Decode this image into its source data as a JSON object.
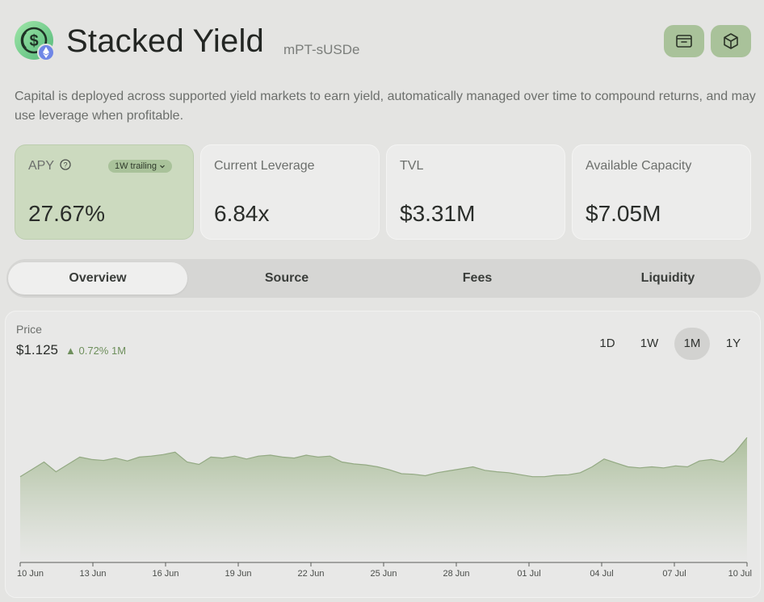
{
  "header": {
    "title": "Stacked Yield",
    "subtitle": "mPT-sUSDe",
    "logo_icon": "usd-coin-icon",
    "badge_icon": "ethereum-icon",
    "buttons": [
      {
        "icon": "wallet-icon"
      },
      {
        "icon": "cube-icon"
      }
    ],
    "accent_color": "#a9c29a"
  },
  "description": "Capital is deployed across supported yield markets to earn yield, automatically managed over time to compound returns, and may use leverage when profitable.",
  "stats": {
    "apy": {
      "label": "APY",
      "value": "27.67%",
      "period": "1W trailing",
      "help_icon": "question-circle-icon"
    },
    "leverage": {
      "label": "Current Leverage",
      "value": "6.84x"
    },
    "tvl": {
      "label": "TVL",
      "value": "$3.31M"
    },
    "capacity": {
      "label": "Available Capacity",
      "value": "$7.05M"
    }
  },
  "tabs": [
    {
      "label": "Overview",
      "active": true
    },
    {
      "label": "Source",
      "active": false
    },
    {
      "label": "Fees",
      "active": false
    },
    {
      "label": "Liquidity",
      "active": false
    }
  ],
  "price_panel": {
    "label": "Price",
    "value": "$1.125",
    "change": "0.72% 1M",
    "change_color": "#6e8f5c",
    "ranges": [
      {
        "label": "1D",
        "active": false
      },
      {
        "label": "1W",
        "active": false
      },
      {
        "label": "1M",
        "active": true
      },
      {
        "label": "1Y",
        "active": false
      }
    ]
  },
  "chart_data": {
    "type": "area",
    "title": "",
    "xlabel": "",
    "ylabel": "",
    "x_ticks": [
      "10 Jun",
      "13 Jun",
      "16 Jun",
      "19 Jun",
      "22 Jun",
      "25 Jun",
      "28 Jun",
      "01 Jul",
      "04 Jul",
      "07 Jul",
      "10 Jul"
    ],
    "y_axis_visible": false,
    "grid": false,
    "series": [
      {
        "color": "#a9bd98",
        "x": [
          "10 Jun",
          "10 Jun",
          "11 Jun",
          "11 Jun",
          "12 Jun",
          "12 Jun",
          "13 Jun",
          "13 Jun",
          "14 Jun",
          "14 Jun",
          "15 Jun",
          "15 Jun",
          "16 Jun",
          "16 Jun",
          "17 Jun",
          "17 Jun",
          "18 Jun",
          "18 Jun",
          "19 Jun",
          "19 Jun",
          "20 Jun",
          "20 Jun",
          "21 Jun",
          "21 Jun",
          "22 Jun",
          "22 Jun",
          "23 Jun",
          "23 Jun",
          "24 Jun",
          "24 Jun",
          "25 Jun",
          "25 Jun",
          "26 Jun",
          "26 Jun",
          "27 Jun",
          "27 Jun",
          "28 Jun",
          "28 Jun",
          "29 Jun",
          "29 Jun",
          "30 Jun",
          "30 Jun",
          "01 Jul",
          "01 Jul",
          "02 Jul",
          "02 Jul",
          "03 Jul",
          "03 Jul",
          "04 Jul",
          "04 Jul",
          "05 Jul",
          "05 Jul",
          "06 Jul",
          "06 Jul",
          "07 Jul",
          "07 Jul",
          "08 Jul",
          "08 Jul",
          "09 Jul",
          "09 Jul",
          "10 Jul",
          "10 Jul"
        ],
        "values": [
          1.117,
          1.1185,
          1.12,
          1.118,
          1.1195,
          1.121,
          1.1205,
          1.1203,
          1.1208,
          1.1202,
          1.121,
          1.1212,
          1.1215,
          1.122,
          1.12,
          1.1195,
          1.121,
          1.1208,
          1.1212,
          1.1206,
          1.1212,
          1.1214,
          1.121,
          1.1208,
          1.1214,
          1.121,
          1.1212,
          1.12,
          1.1196,
          1.1194,
          1.119,
          1.1184,
          1.1176,
          1.1175,
          1.1172,
          1.1178,
          1.1182,
          1.1186,
          1.119,
          1.1183,
          1.118,
          1.1178,
          1.1174,
          1.117,
          1.117,
          1.1173,
          1.1174,
          1.1178,
          1.119,
          1.1206,
          1.1198,
          1.119,
          1.1188,
          1.119,
          1.1188,
          1.1192,
          1.119,
          1.1202,
          1.1205,
          1.12,
          1.122,
          1.125
        ]
      }
    ]
  }
}
